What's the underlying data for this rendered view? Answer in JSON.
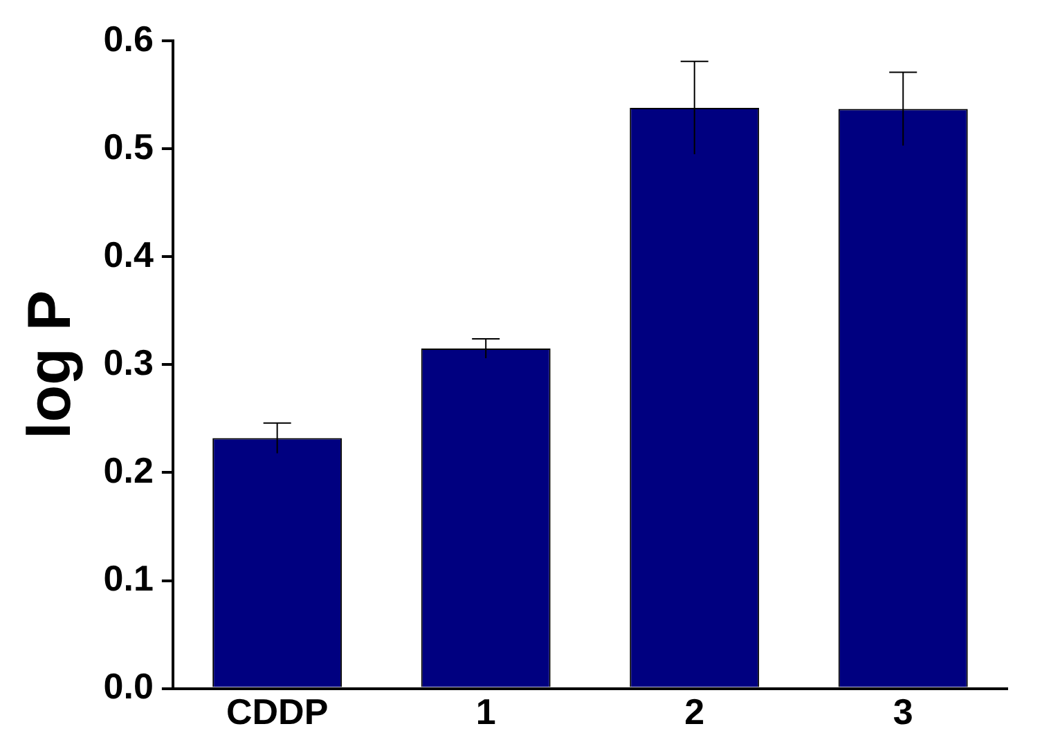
{
  "chart_data": {
    "type": "bar",
    "ylabel": "log P",
    "categories": [
      "CDDP",
      "1",
      "2",
      "3"
    ],
    "values": [
      0.232,
      0.315,
      0.538,
      0.537
    ],
    "errors": [
      0.014,
      0.009,
      0.043,
      0.034
    ],
    "color": "#000080",
    "ylim": [
      0,
      0.6
    ],
    "yticks": [
      {
        "value": 0,
        "label": "0.0"
      },
      {
        "value": 0.1,
        "label": "0.1"
      },
      {
        "value": 0.2,
        "label": "0.2"
      },
      {
        "value": 0.3,
        "label": "0.3"
      },
      {
        "value": 0.4,
        "label": "0.4"
      },
      {
        "value": 0.5,
        "label": "0.5"
      },
      {
        "value": 0.6,
        "label": "0.6"
      }
    ],
    "grid": false,
    "legend": false
  }
}
